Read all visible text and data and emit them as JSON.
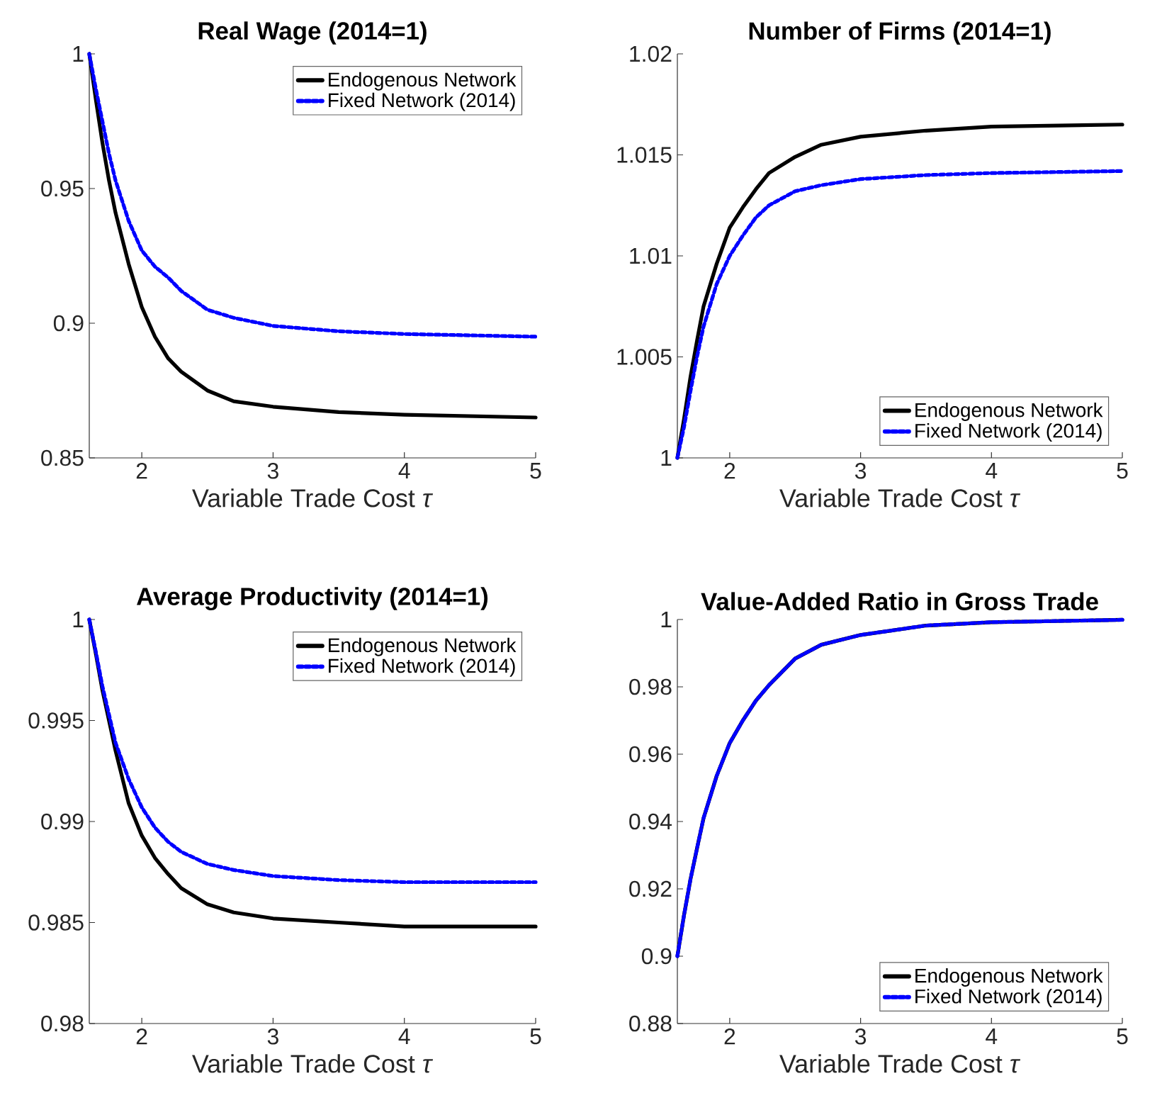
{
  "chart_data": [
    {
      "type": "line",
      "title": "Real Wage (2014=1)",
      "xlabel": "Variable Trade Cost *τ*",
      "x": [
        1.6,
        1.65,
        1.7,
        1.75,
        1.8,
        1.9,
        2.0,
        2.1,
        2.2,
        2.3,
        2.5,
        2.7,
        3.0,
        3.5,
        4.0,
        5.0
      ],
      "xlim": [
        1.6,
        5
      ],
      "xticks": [
        2,
        3,
        4,
        5
      ],
      "ylim": [
        0.85,
        1
      ],
      "yticks": [
        0.85,
        0.9,
        0.95,
        1
      ],
      "legend": "top right",
      "grid": false,
      "series": [
        {
          "name": "Endogenous Network",
          "color": "#000000",
          "line_style": "solid",
          "values": [
            1.0,
            0.983,
            0.967,
            0.953,
            0.941,
            0.922,
            0.906,
            0.895,
            0.887,
            0.882,
            0.875,
            0.871,
            0.869,
            0.867,
            0.866,
            0.865
          ]
        },
        {
          "name": "Fixed Network (2014)",
          "color": "#0000ff",
          "line_style": "dotted",
          "values": [
            1.0,
            0.987,
            0.975,
            0.963,
            0.953,
            0.938,
            0.927,
            0.921,
            0.917,
            0.912,
            0.905,
            0.902,
            0.899,
            0.897,
            0.896,
            0.895
          ]
        }
      ]
    },
    {
      "type": "line",
      "title": "Number of Firms (2014=1)",
      "xlabel": "Variable Trade Cost *τ*",
      "x": [
        1.6,
        1.65,
        1.7,
        1.75,
        1.8,
        1.9,
        2.0,
        2.1,
        2.2,
        2.3,
        2.5,
        2.7,
        3.0,
        3.5,
        4.0,
        5.0
      ],
      "xlim": [
        1.6,
        5
      ],
      "xticks": [
        2,
        3,
        4,
        5
      ],
      "ylim": [
        1,
        1.02
      ],
      "yticks": [
        1,
        1.005,
        1.01,
        1.015,
        1.02
      ],
      "legend": "bottom right",
      "grid": false,
      "series": [
        {
          "name": "Endogenous Network",
          "color": "#000000",
          "line_style": "solid",
          "values": [
            1.0,
            1.0019,
            1.004,
            1.0058,
            1.0075,
            1.0096,
            1.0114,
            1.0124,
            1.0133,
            1.0141,
            1.0149,
            1.0155,
            1.0159,
            1.0162,
            1.0164,
            1.0165
          ]
        },
        {
          "name": "Fixed Network (2014)",
          "color": "#0000ff",
          "line_style": "dotted",
          "values": [
            1.0,
            1.0015,
            1.0033,
            1.005,
            1.0065,
            1.0086,
            1.01,
            1.011,
            1.0119,
            1.0125,
            1.0132,
            1.0135,
            1.0138,
            1.014,
            1.0141,
            1.0142
          ]
        }
      ]
    },
    {
      "type": "line",
      "title": "Average Productivity (2014=1)",
      "xlabel": "Variable Trade Cost *τ*",
      "x": [
        1.6,
        1.65,
        1.7,
        1.75,
        1.8,
        1.9,
        2.0,
        2.1,
        2.2,
        2.3,
        2.5,
        2.7,
        3.0,
        3.5,
        4.0,
        5.0
      ],
      "xlim": [
        1.6,
        5
      ],
      "xticks": [
        2,
        3,
        4,
        5
      ],
      "ylim": [
        0.98,
        1
      ],
      "yticks": [
        0.98,
        0.985,
        0.99,
        0.995,
        1
      ],
      "legend": "top right",
      "grid": false,
      "series": [
        {
          "name": "Endogenous Network",
          "color": "#000000",
          "line_style": "solid",
          "values": [
            1.0,
            0.9983,
            0.9965,
            0.995,
            0.9935,
            0.9909,
            0.9893,
            0.9882,
            0.9874,
            0.9867,
            0.9859,
            0.9855,
            0.9852,
            0.985,
            0.9848,
            0.9848
          ]
        },
        {
          "name": "Fixed Network (2014)",
          "color": "#0000ff",
          "line_style": "dotted",
          "values": [
            1.0,
            0.9984,
            0.9967,
            0.9953,
            0.9939,
            0.9921,
            0.9907,
            0.9897,
            0.989,
            0.9885,
            0.9879,
            0.9876,
            0.9873,
            0.9871,
            0.987,
            0.987
          ]
        }
      ]
    },
    {
      "type": "line",
      "title": "Value-Added Ratio in Gross Trade",
      "xlabel": "Variable Trade Cost *τ*",
      "x": [
        1.6,
        1.65,
        1.7,
        1.75,
        1.8,
        1.9,
        2.0,
        2.1,
        2.2,
        2.3,
        2.5,
        2.7,
        3.0,
        3.5,
        4.0,
        5.0
      ],
      "xlim": [
        1.6,
        5
      ],
      "xticks": [
        2,
        3,
        4,
        5
      ],
      "ylim": [
        0.88,
        1
      ],
      "yticks": [
        0.88,
        0.9,
        0.92,
        0.94,
        0.96,
        0.98,
        1
      ],
      "legend": "bottom right",
      "grid": false,
      "series": [
        {
          "name": "Endogenous Network",
          "color": "#000000",
          "line_style": "solid",
          "values": [
            0.9,
            0.912,
            0.9228,
            0.932,
            0.941,
            0.9535,
            0.9633,
            0.97,
            0.9759,
            0.9805,
            0.9884,
            0.9925,
            0.9954,
            0.9982,
            0.9992,
            0.9999
          ]
        },
        {
          "name": "Fixed Network (2014)",
          "color": "#0000ff",
          "line_style": "dotted",
          "values": [
            0.9,
            0.912,
            0.9228,
            0.932,
            0.941,
            0.9535,
            0.9633,
            0.97,
            0.9759,
            0.9805,
            0.9884,
            0.9925,
            0.9954,
            0.9982,
            0.9992,
            0.9999
          ]
        }
      ]
    }
  ]
}
